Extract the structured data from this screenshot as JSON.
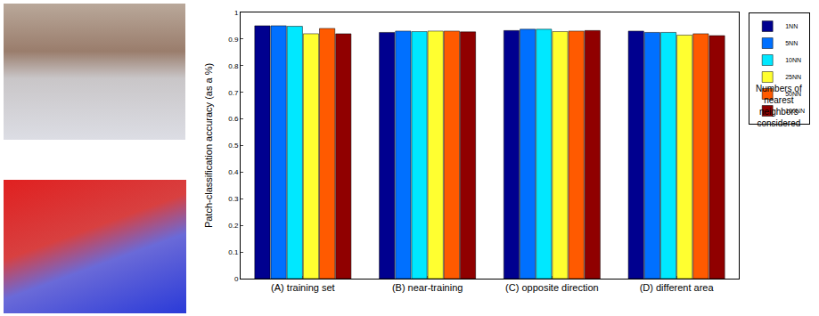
{
  "chart_data": {
    "type": "bar",
    "y_label": "Patch-classification accuracy (as a %)",
    "categories": [
      "(A) training set",
      "(B) near-training",
      "(C) opposite direction",
      "(D) different area"
    ],
    "series": [
      {
        "name": "1NN",
        "color": "#00008f",
        "values": [
          0.95,
          0.925,
          0.932,
          0.93
        ]
      },
      {
        "name": "5NN",
        "color": "#0070ff",
        "values": [
          0.95,
          0.93,
          0.937,
          0.925
        ]
      },
      {
        "name": "10NN",
        "color": "#00e8ff",
        "values": [
          0.948,
          0.928,
          0.937,
          0.925
        ]
      },
      {
        "name": "25NN",
        "color": "#ffff30",
        "values": [
          0.92,
          0.93,
          0.928,
          0.915
        ]
      },
      {
        "name": "50NN",
        "color": "#ff5a00",
        "values": [
          0.94,
          0.93,
          0.93,
          0.92
        ]
      },
      {
        "name": "100NN",
        "color": "#900000",
        "values": [
          0.92,
          0.927,
          0.932,
          0.913
        ]
      }
    ],
    "ylim": [
      0,
      1
    ],
    "yticks": [
      0,
      0.1,
      0.2,
      0.3,
      0.4,
      0.5,
      0.6,
      0.7,
      0.8,
      0.9,
      1
    ],
    "grid": false,
    "legend": "right",
    "annotations": [
      "Numbers of nearest neighbors considered"
    ]
  }
}
